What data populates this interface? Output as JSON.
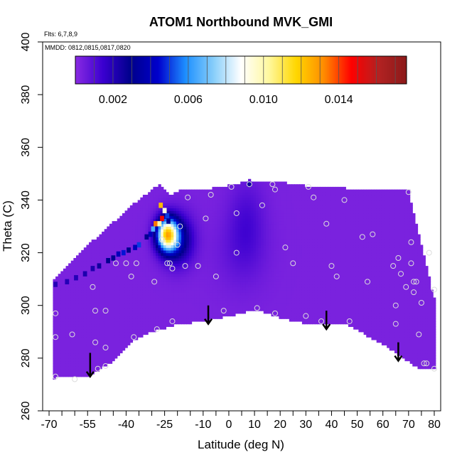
{
  "chart_data": {
    "type": "heatmap",
    "title": "ATOM1 Northbound MVK_GMI",
    "annotation_flights": "Flts: 6,7,8,9",
    "annotation_dates": "MMDD: 0812,0815,0817,0820",
    "xlabel": "Latitude (deg N)",
    "ylabel": "Theta (C)",
    "xlim": [
      -70,
      80
    ],
    "ylim": [
      260,
      400
    ],
    "x_ticks": [
      "-70",
      "-55",
      "-40",
      "-25",
      "-10",
      "0",
      "10",
      "20",
      "30",
      "40",
      "50",
      "60",
      "70",
      "80"
    ],
    "x_tick_values": [
      -70,
      -55,
      -40,
      -25,
      -10,
      0,
      10,
      20,
      30,
      40,
      50,
      60,
      70,
      80
    ],
    "x_minor_ticks": [
      -65,
      -60,
      -50,
      -45,
      -35,
      -30,
      -20,
      -15,
      -5,
      5,
      15,
      25,
      35,
      45,
      55,
      65,
      75
    ],
    "y_ticks": [
      "260",
      "280",
      "300",
      "320",
      "340",
      "360",
      "380",
      "400"
    ],
    "y_tick_values": [
      260,
      280,
      300,
      320,
      340,
      360,
      380,
      400
    ],
    "colorbar": {
      "range": [
        0,
        0.0176
      ],
      "tick_labels": [
        "0.002",
        "0.006",
        "0.010",
        "0.014"
      ],
      "tick_values": [
        0.002,
        0.006,
        0.01,
        0.014
      ],
      "colors": [
        "#8a2be2",
        "#3a00d0",
        "#00008b",
        "#0000cd",
        "#1e90ff",
        "#87cefa",
        "#ffffff",
        "#fff8a0",
        "#ffd700",
        "#ff8c00",
        "#ff0000",
        "#b22222",
        "#8b1a1a"
      ]
    },
    "background_value": 0.0003,
    "domain_top": [
      [
        -68.5,
        309
      ],
      [
        -67,
        311
      ],
      [
        -65,
        313
      ],
      [
        -63,
        315
      ],
      [
        -61,
        317
      ],
      [
        -59,
        319
      ],
      [
        -57,
        321
      ],
      [
        -55,
        323
      ],
      [
        -53,
        324.5
      ],
      [
        -51,
        326
      ],
      [
        -49,
        328
      ],
      [
        -47,
        330
      ],
      [
        -45,
        331.5
      ],
      [
        -43,
        333
      ],
      [
        -41,
        335
      ],
      [
        -39,
        337
      ],
      [
        -37,
        338.5
      ],
      [
        -35,
        340
      ],
      [
        -33,
        341.5
      ],
      [
        -31,
        343
      ],
      [
        -29,
        344.5
      ],
      [
        -27,
        345.8
      ],
      [
        -25,
        343.5
      ],
      [
        -23,
        342
      ],
      [
        -21,
        342.5
      ],
      [
        -19,
        343.5
      ],
      [
        -17,
        344
      ],
      [
        -10,
        344
      ],
      [
        -3,
        345
      ],
      [
        3,
        346
      ],
      [
        8,
        347.5
      ],
      [
        15,
        347
      ],
      [
        20,
        347
      ],
      [
        25,
        346
      ],
      [
        33,
        345
      ],
      [
        40,
        345
      ],
      [
        45,
        345
      ],
      [
        46,
        343.5
      ],
      [
        70,
        343.5
      ],
      [
        70.5,
        341
      ],
      [
        71.5,
        337
      ],
      [
        72.5,
        333
      ],
      [
        73.5,
        329
      ],
      [
        74.5,
        325
      ],
      [
        75.5,
        321
      ],
      [
        76.5,
        317
      ],
      [
        77.5,
        313
      ],
      [
        78.5,
        308
      ],
      [
        79.5,
        303
      ]
    ],
    "domain_bottom": [
      [
        79.5,
        276
      ],
      [
        74,
        276
      ],
      [
        68,
        280
      ],
      [
        62,
        284
      ],
      [
        46,
        293
      ],
      [
        33,
        293
      ],
      [
        25,
        294
      ],
      [
        18,
        296
      ],
      [
        10,
        298.5
      ],
      [
        0,
        296
      ],
      [
        -10,
        294
      ],
      [
        -20,
        293
      ],
      [
        -30,
        290
      ],
      [
        -37,
        287
      ],
      [
        -45,
        279
      ],
      [
        -50,
        276
      ],
      [
        -55,
        273
      ],
      [
        -68,
        272.5
      ]
    ],
    "plumes": [
      {
        "lat": -24,
        "theta": 327,
        "slat": 4,
        "stheta": 6,
        "amp": 0.0106
      },
      {
        "lat": -20,
        "theta": 325,
        "slat": 6,
        "stheta": 9,
        "amp": 0.0032
      },
      {
        "lat": 7,
        "theta": 333,
        "slat": 7,
        "stheta": 15,
        "amp": 0.0008
      },
      {
        "lat": 5,
        "theta": 320,
        "slat": 10,
        "stheta": 14,
        "amp": 0.0005
      }
    ],
    "edge_blocks": [
      {
        "lat": -26.5,
        "theta": 338,
        "value": 0.0123
      },
      {
        "lat": -25,
        "theta": 336,
        "value": 0.0092
      },
      {
        "lat": -24,
        "theta": 334,
        "value": 0.005
      },
      {
        "lat": -23.5,
        "theta": 332,
        "value": 0.0032
      },
      {
        "lat": -26,
        "theta": 333,
        "value": 0.015
      },
      {
        "lat": -28.5,
        "theta": 331,
        "value": 0.0134
      },
      {
        "lat": -27,
        "theta": 331,
        "value": 0.01
      },
      {
        "lat": -29.5,
        "theta": 329,
        "value": 0.0065
      },
      {
        "lat": -30.5,
        "theta": 327,
        "value": 0.004
      },
      {
        "lat": -32,
        "theta": 326,
        "value": 0.0028
      },
      {
        "lat": -35,
        "theta": 323,
        "value": 0.005
      },
      {
        "lat": -36.5,
        "theta": 322,
        "value": 0.004
      },
      {
        "lat": -39,
        "theta": 321,
        "value": 0.003
      },
      {
        "lat": -41,
        "theta": 320,
        "value": 0.0046
      },
      {
        "lat": -43,
        "theta": 319.5,
        "value": 0.004
      },
      {
        "lat": -45,
        "theta": 318,
        "value": 0.0032
      },
      {
        "lat": -47,
        "theta": 317,
        "value": 0.003
      },
      {
        "lat": -50.5,
        "theta": 315,
        "value": 0.0025
      },
      {
        "lat": -53,
        "theta": 314,
        "value": 0.0022
      },
      {
        "lat": -56,
        "theta": 312,
        "value": 0.0022
      },
      {
        "lat": -59.5,
        "theta": 310.5,
        "value": 0.002
      },
      {
        "lat": -63,
        "theta": 309,
        "value": 0.002
      },
      {
        "lat": -67.5,
        "theta": 308,
        "value": 0.002
      },
      {
        "lat": 8,
        "theta": 346,
        "value": 0.0026
      }
    ],
    "sample_points": [
      [
        -67.5,
        297
      ],
      [
        -67.5,
        288
      ],
      [
        -67.5,
        273
      ],
      [
        -61,
        289
      ],
      [
        -60,
        272
      ],
      [
        -53,
        307
      ],
      [
        -52,
        298
      ],
      [
        -52,
        286
      ],
      [
        -51,
        276
      ],
      [
        -48,
        298
      ],
      [
        -48,
        284
      ],
      [
        -48,
        277
      ],
      [
        -44,
        316
      ],
      [
        -40,
        316
      ],
      [
        -36,
        316
      ],
      [
        -38,
        311
      ],
      [
        -37,
        288
      ],
      [
        -29,
        309
      ],
      [
        -28,
        291
      ],
      [
        -26,
        325
      ],
      [
        -24,
        316
      ],
      [
        -23,
        316
      ],
      [
        -22,
        314
      ],
      [
        -22,
        294
      ],
      [
        -20,
        323
      ],
      [
        -19,
        330
      ],
      [
        -17,
        315
      ],
      [
        -16,
        341
      ],
      [
        -12,
        315
      ],
      [
        -9,
        333
      ],
      [
        -7,
        342
      ],
      [
        -5,
        311
      ],
      [
        -2,
        298
      ],
      [
        1,
        345
      ],
      [
        3,
        335
      ],
      [
        3,
        320
      ],
      [
        8,
        346
      ],
      [
        11,
        299
      ],
      [
        13,
        338
      ],
      [
        17,
        346
      ],
      [
        18,
        297
      ],
      [
        18,
        344
      ],
      [
        22,
        322
      ],
      [
        25,
        316
      ],
      [
        30,
        296
      ],
      [
        31,
        345
      ],
      [
        33,
        341
      ],
      [
        36,
        294
      ],
      [
        38,
        331
      ],
      [
        40,
        315
      ],
      [
        42,
        311
      ],
      [
        45,
        340
      ],
      [
        47,
        294
      ],
      [
        52,
        326
      ],
      [
        54,
        309
      ],
      [
        56,
        327
      ],
      [
        64,
        315
      ],
      [
        65,
        300
      ],
      [
        65,
        293
      ],
      [
        66,
        318
      ],
      [
        67,
        312
      ],
      [
        69,
        307
      ],
      [
        70,
        343
      ],
      [
        71,
        324
      ],
      [
        71,
        316
      ],
      [
        72,
        309
      ],
      [
        72,
        305
      ],
      [
        73,
        309
      ],
      [
        74,
        289
      ],
      [
        75,
        301
      ],
      [
        76,
        278
      ],
      [
        77,
        278
      ],
      [
        78,
        320
      ],
      [
        80,
        306
      ],
      [
        80,
        276
      ]
    ],
    "arrows": [
      {
        "lat": -54,
        "theta_top": 282,
        "theta_bottom": 273
      },
      {
        "lat": -8,
        "theta_top": 300,
        "theta_bottom": 293
      },
      {
        "lat": 38,
        "theta_top": 298,
        "theta_bottom": 291
      },
      {
        "lat": 66,
        "theta_top": 286,
        "theta_bottom": 279
      }
    ]
  }
}
